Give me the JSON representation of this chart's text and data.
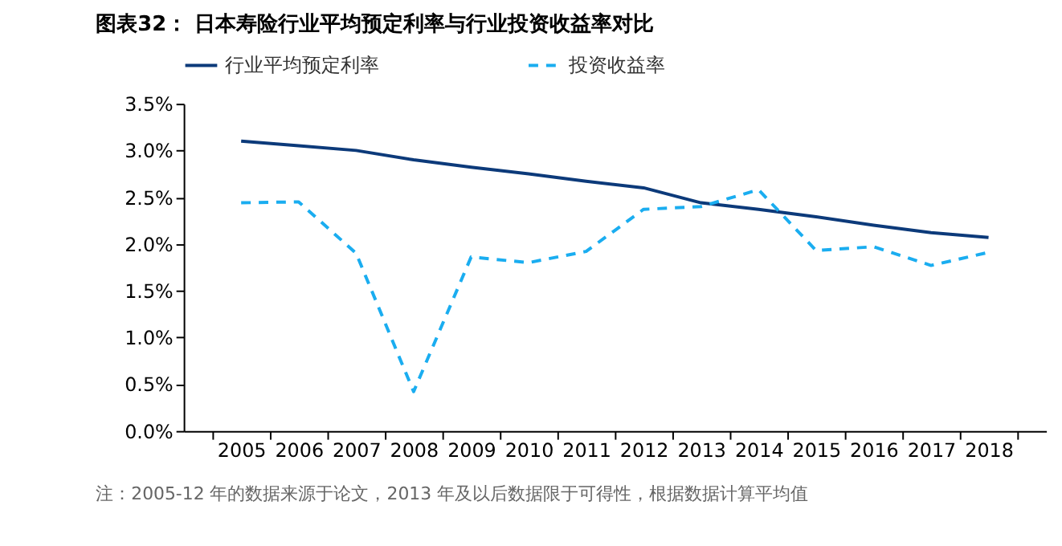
{
  "chart_data": {
    "type": "line",
    "title": "图表32：  日本寿险行业平均预定利率与行业投资收益率对比",
    "categories": [
      "2005",
      "2006",
      "2007",
      "2008",
      "2009",
      "2010",
      "2011",
      "2012",
      "2013",
      "2014",
      "2015",
      "2016",
      "2017",
      "2018"
    ],
    "series": [
      {
        "name": "行业平均预定利率",
        "color": "#0c3a7a",
        "line_style": "solid",
        "values": [
          3.1,
          3.05,
          3.0,
          2.9,
          2.82,
          2.75,
          2.67,
          2.6,
          2.44,
          2.37,
          2.29,
          2.2,
          2.12,
          2.07
        ]
      },
      {
        "name": "投资收益率",
        "color": "#1aadf0",
        "line_style": "dashed",
        "values": [
          2.44,
          2.45,
          1.9,
          0.42,
          1.86,
          1.8,
          1.92,
          2.37,
          2.4,
          2.58,
          1.93,
          1.97,
          1.77,
          1.91
        ]
      }
    ],
    "ylim": [
      0,
      3.5
    ],
    "yticks": [
      {
        "value": 0,
        "label": "0.0%"
      },
      {
        "value": 0.5,
        "label": "0.5%"
      },
      {
        "value": 1,
        "label": "1.0%"
      },
      {
        "value": 1.5,
        "label": "1.5%"
      },
      {
        "value": 2,
        "label": "2.0%"
      },
      {
        "value": 2.5,
        "label": "2.5%"
      },
      {
        "value": 3,
        "label": "3.0%"
      },
      {
        "value": 3.5,
        "label": "3.5%"
      }
    ],
    "grid": false,
    "legend": "top",
    "marker": "none",
    "annotations": [
      "注：2005-12 年的数据来源于论文，2013 年及以后数据限于可得性，根据数据计算平均值"
    ]
  }
}
